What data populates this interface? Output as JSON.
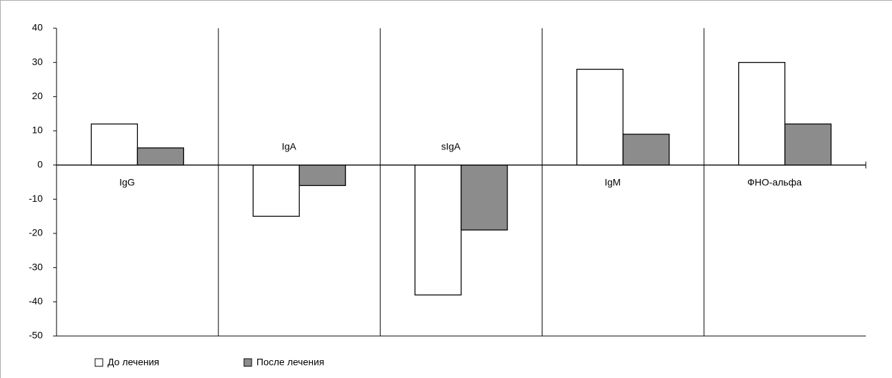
{
  "chart_data": {
    "type": "bar",
    "categories": [
      "IgG",
      "IgA",
      "sIgA",
      "IgM",
      "ФНО-альфа"
    ],
    "series": [
      {
        "name": "До лечения",
        "color": "#ffffff",
        "values": [
          12,
          -15,
          -38,
          28,
          30
        ]
      },
      {
        "name": "После лечения",
        "color": "#8c8c8c",
        "values": [
          5,
          -6,
          -19,
          9,
          12
        ]
      }
    ],
    "ylim": [
      -50,
      40
    ],
    "yticks": [
      -50,
      -40,
      -30,
      -20,
      -10,
      0,
      10,
      20,
      30,
      40
    ],
    "grid": false,
    "legend": "bottom-left"
  }
}
